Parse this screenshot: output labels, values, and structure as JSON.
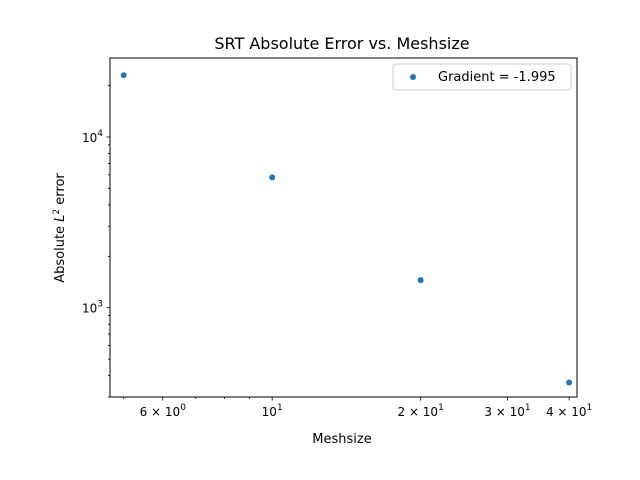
{
  "chart_data": {
    "type": "scatter",
    "title": "SRT Absolute Error vs. Meshsize",
    "xlabel": "Meshsize",
    "ylabel": "Absolute L^2 error",
    "xscale": "log",
    "yscale": "log",
    "xlim": [
      4.69,
      41.5
    ],
    "ylim": [
      300,
      29000
    ],
    "grid": false,
    "legend_position": "top-right",
    "color": "#1f77b4",
    "x_tick_labels": [
      {
        "value": 6,
        "label": "6 × 10^0",
        "mantissa": "6 × 10",
        "exp": "0"
      },
      {
        "value": 10,
        "label": "10^1",
        "mantissa": "10",
        "exp": "1"
      },
      {
        "value": 20,
        "label": "2 × 10^1",
        "mantissa": "2 × 10",
        "exp": "1"
      },
      {
        "value": 30,
        "label": "3 × 10^1",
        "mantissa": "3 × 10",
        "exp": "1"
      },
      {
        "value": 40,
        "label": "4 × 10^1",
        "mantissa": "4 × 10",
        "exp": "1"
      }
    ],
    "y_tick_labels": [
      {
        "value": 1000,
        "label": "10^3",
        "base": "10",
        "exp": "3"
      },
      {
        "value": 10000,
        "label": "10^4",
        "base": "10",
        "exp": "4"
      }
    ],
    "series": [
      {
        "name": "Gradient = -1.995",
        "x": [
          5,
          10,
          20,
          40
        ],
        "y": [
          23000,
          5800,
          1450,
          365
        ]
      }
    ]
  }
}
